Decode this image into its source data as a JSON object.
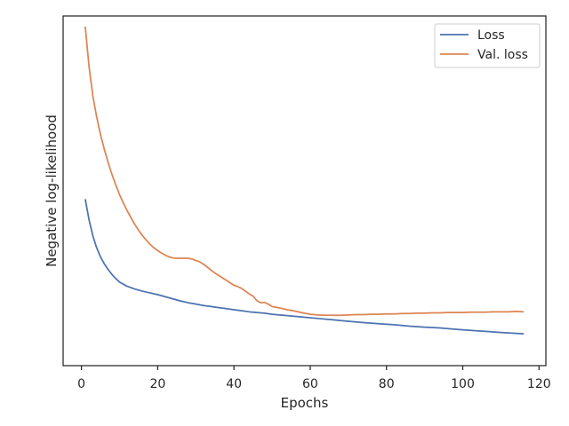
{
  "chart_data": {
    "type": "line",
    "title": "",
    "xlabel": "Epochs",
    "ylabel": "Negative log-likelihood",
    "xlim": [
      -4.8,
      121.8
    ],
    "ylim": [
      0,
      1
    ],
    "x_ticks": [
      0,
      20,
      40,
      60,
      80,
      100,
      120
    ],
    "y_ticks": [],
    "grid": false,
    "legend_position": "top-right",
    "series": [
      {
        "name": "Loss",
        "color": "#4c72b0",
        "points": [
          [
            1,
            0.476
          ],
          [
            2,
            0.417
          ],
          [
            3,
            0.371
          ],
          [
            4,
            0.337
          ],
          [
            5,
            0.311
          ],
          [
            6,
            0.291
          ],
          [
            7,
            0.275
          ],
          [
            8,
            0.261
          ],
          [
            9,
            0.249
          ],
          [
            10,
            0.239
          ],
          [
            12,
            0.227
          ],
          [
            14,
            0.219
          ],
          [
            16,
            0.213
          ],
          [
            18,
            0.208
          ],
          [
            20,
            0.203
          ],
          [
            22,
            0.197
          ],
          [
            24,
            0.191
          ],
          [
            26,
            0.185
          ],
          [
            28,
            0.18
          ],
          [
            30,
            0.176
          ],
          [
            32,
            0.172
          ],
          [
            34,
            0.169
          ],
          [
            36,
            0.166
          ],
          [
            38,
            0.163
          ],
          [
            40,
            0.16
          ],
          [
            42,
            0.157
          ],
          [
            44,
            0.154
          ],
          [
            46,
            0.152
          ],
          [
            48,
            0.15
          ],
          [
            50,
            0.147
          ],
          [
            54,
            0.143
          ],
          [
            58,
            0.139
          ],
          [
            62,
            0.135
          ],
          [
            66,
            0.131
          ],
          [
            70,
            0.127
          ],
          [
            74,
            0.123
          ],
          [
            78,
            0.12
          ],
          [
            82,
            0.117
          ],
          [
            86,
            0.113
          ],
          [
            90,
            0.11
          ],
          [
            94,
            0.108
          ],
          [
            98,
            0.104
          ],
          [
            102,
            0.101
          ],
          [
            106,
            0.098
          ],
          [
            110,
            0.095
          ],
          [
            113,
            0.093
          ],
          [
            116,
            0.091
          ]
        ]
      },
      {
        "name": "Val. loss",
        "color": "#dd8452",
        "points": [
          [
            1,
            0.97
          ],
          [
            2,
            0.855
          ],
          [
            3,
            0.771
          ],
          [
            4,
            0.711
          ],
          [
            5,
            0.661
          ],
          [
            6,
            0.619
          ],
          [
            7,
            0.581
          ],
          [
            8,
            0.547
          ],
          [
            9,
            0.517
          ],
          [
            10,
            0.489
          ],
          [
            11,
            0.465
          ],
          [
            12,
            0.443
          ],
          [
            13,
            0.423
          ],
          [
            14,
            0.404
          ],
          [
            15,
            0.387
          ],
          [
            16,
            0.372
          ],
          [
            17,
            0.359
          ],
          [
            18,
            0.347
          ],
          [
            19,
            0.337
          ],
          [
            20,
            0.329
          ],
          [
            21,
            0.322
          ],
          [
            22,
            0.316
          ],
          [
            23,
            0.311
          ],
          [
            24,
            0.308
          ],
          [
            25,
            0.307
          ],
          [
            26,
            0.307
          ],
          [
            27,
            0.307
          ],
          [
            28,
            0.307
          ],
          [
            29,
            0.305
          ],
          [
            30,
            0.301
          ],
          [
            31,
            0.297
          ],
          [
            32,
            0.29
          ],
          [
            33,
            0.282
          ],
          [
            34,
            0.273
          ],
          [
            35,
            0.265
          ],
          [
            36,
            0.258
          ],
          [
            37,
            0.251
          ],
          [
            38,
            0.244
          ],
          [
            39,
            0.237
          ],
          [
            40,
            0.23
          ],
          [
            41,
            0.226
          ],
          [
            42,
            0.221
          ],
          [
            43,
            0.213
          ],
          [
            44,
            0.205
          ],
          [
            45,
            0.199
          ],
          [
            46,
            0.186
          ],
          [
            47,
            0.18
          ],
          [
            48,
            0.181
          ],
          [
            49,
            0.176
          ],
          [
            50,
            0.169
          ],
          [
            52,
            0.165
          ],
          [
            54,
            0.16
          ],
          [
            56,
            0.156
          ],
          [
            58,
            0.151
          ],
          [
            60,
            0.147
          ],
          [
            62,
            0.145
          ],
          [
            64,
            0.144
          ],
          [
            66,
            0.144
          ],
          [
            68,
            0.144
          ],
          [
            70,
            0.145
          ],
          [
            72,
            0.146
          ],
          [
            74,
            0.146
          ],
          [
            76,
            0.147
          ],
          [
            78,
            0.147
          ],
          [
            80,
            0.148
          ],
          [
            82,
            0.148
          ],
          [
            84,
            0.149
          ],
          [
            86,
            0.149
          ],
          [
            88,
            0.15
          ],
          [
            90,
            0.15
          ],
          [
            92,
            0.151
          ],
          [
            94,
            0.151
          ],
          [
            96,
            0.152
          ],
          [
            98,
            0.152
          ],
          [
            100,
            0.152
          ],
          [
            102,
            0.153
          ],
          [
            104,
            0.153
          ],
          [
            106,
            0.153
          ],
          [
            108,
            0.154
          ],
          [
            110,
            0.154
          ],
          [
            112,
            0.154
          ],
          [
            114,
            0.155
          ],
          [
            116,
            0.154
          ]
        ]
      }
    ]
  }
}
